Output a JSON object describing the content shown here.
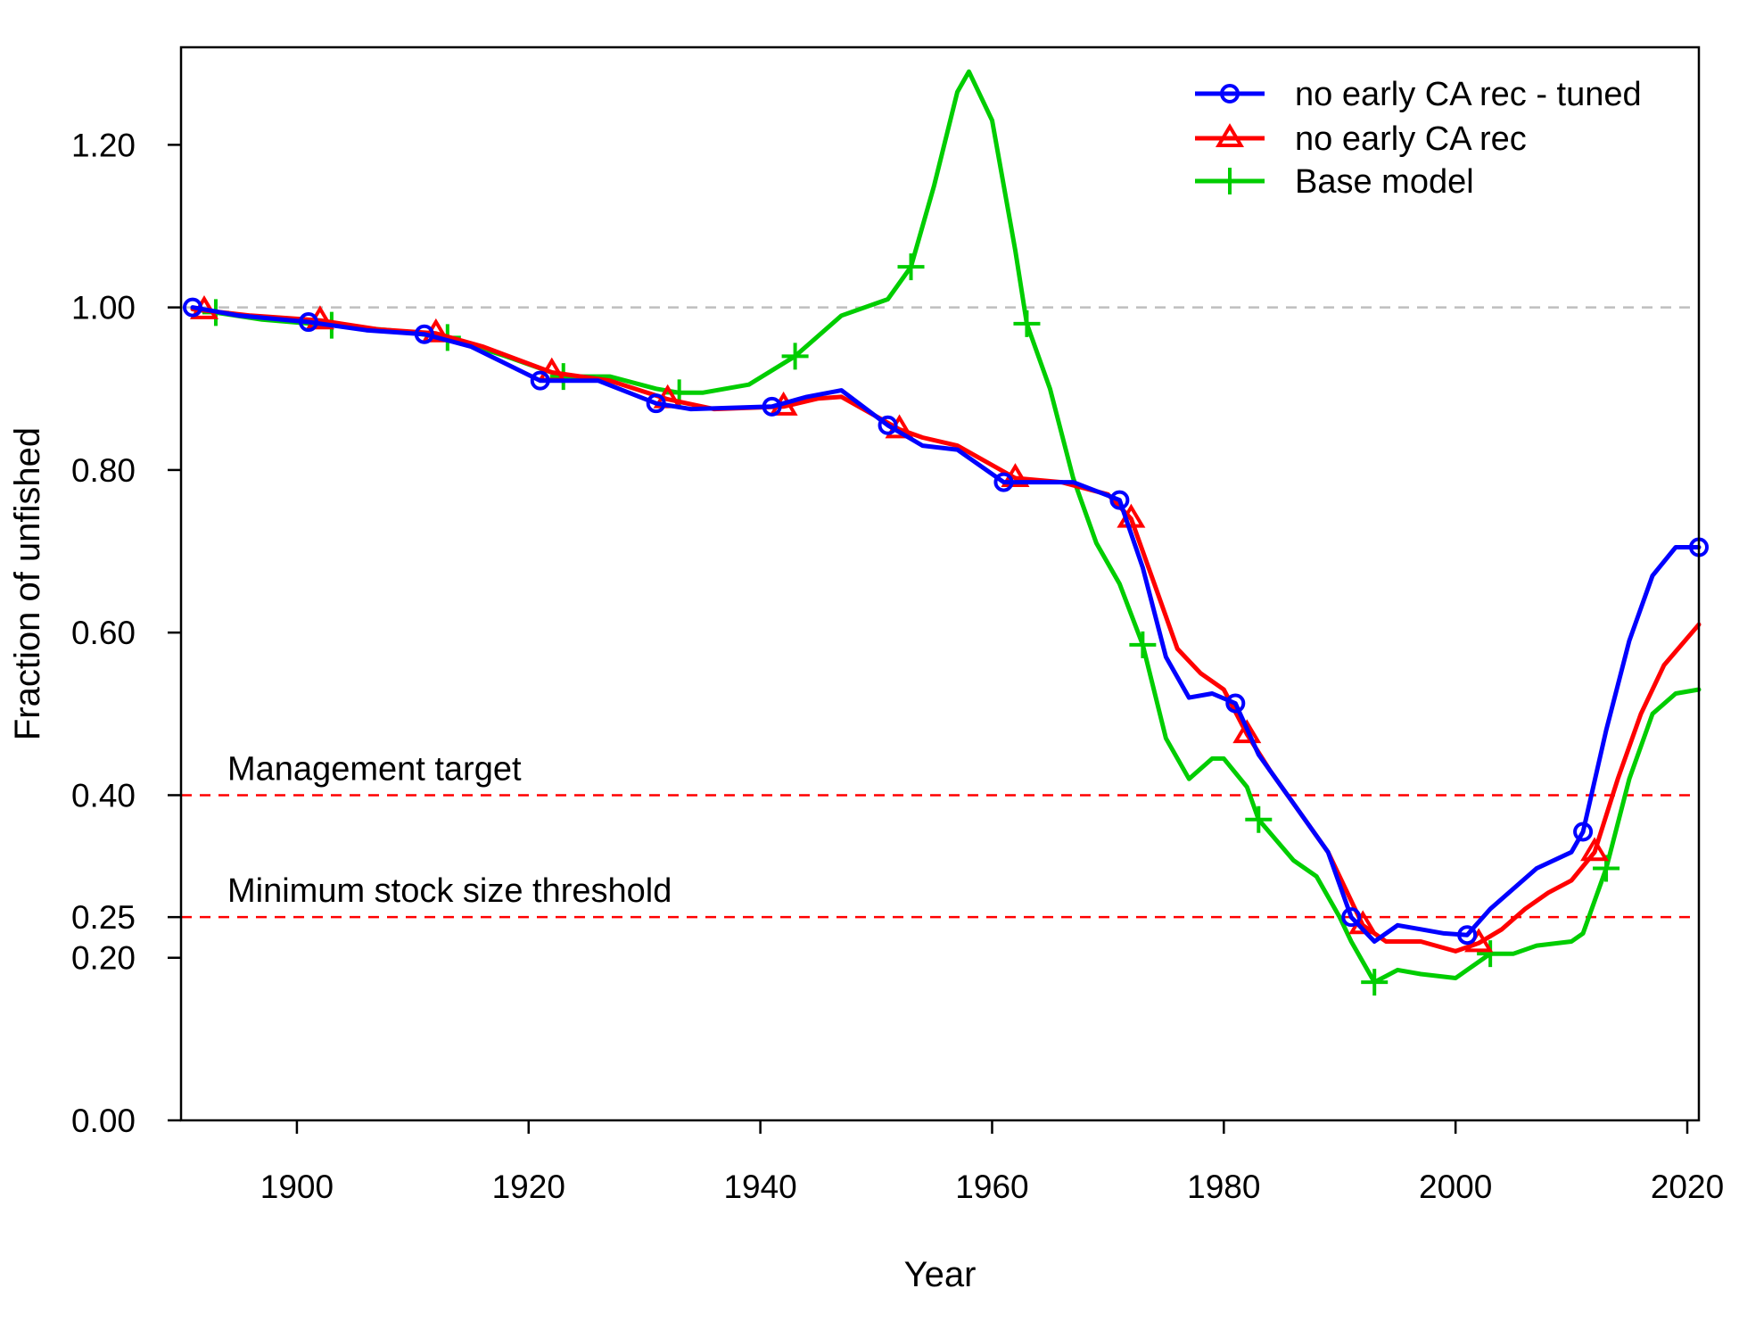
{
  "chart_data": {
    "type": "line",
    "xlabel": "Year",
    "ylabel": "Fraction of unfished",
    "xlim": [
      1890,
      2021
    ],
    "ylim": [
      0,
      1.32
    ],
    "x_ticks": [
      {
        "value": 1900,
        "label": "1900"
      },
      {
        "value": 1920,
        "label": "1920"
      },
      {
        "value": 1940,
        "label": "1940"
      },
      {
        "value": 1960,
        "label": "1960"
      },
      {
        "value": 1980,
        "label": "1980"
      },
      {
        "value": 2000,
        "label": "2000"
      },
      {
        "value": 2020,
        "label": "2020"
      }
    ],
    "y_ticks": [
      {
        "value": 0.0,
        "label": "0.00"
      },
      {
        "value": 0.2,
        "label": "0.20"
      },
      {
        "value": 0.25,
        "label": "0.25"
      },
      {
        "value": 0.4,
        "label": "0.40"
      },
      {
        "value": 0.6,
        "label": "0.60"
      },
      {
        "value": 0.8,
        "label": "0.80"
      },
      {
        "value": 1.0,
        "label": "1.00"
      },
      {
        "value": 1.2,
        "label": "1.20"
      }
    ],
    "reference_lines": [
      {
        "value": 1.0,
        "label": "",
        "color": "#bfbfbf"
      },
      {
        "value": 0.4,
        "label": "Management target",
        "color": "#ff0000"
      },
      {
        "value": 0.25,
        "label": "Minimum stock size threshold",
        "color": "#ff0000"
      }
    ],
    "legend_position": "top-right",
    "grid": false,
    "series": [
      {
        "name": "no early CA rec - tuned",
        "color": "#0000ff",
        "marker": "circle",
        "marker_years": [
          1891,
          1901,
          1911,
          1921,
          1931,
          1941,
          1951,
          1961,
          1971,
          1981,
          1991,
          2001,
          2011,
          2021
        ],
        "points": [
          [
            1891,
            1.0
          ],
          [
            1895,
            0.99
          ],
          [
            1901,
            0.982
          ],
          [
            1906,
            0.972
          ],
          [
            1911,
            0.967
          ],
          [
            1915,
            0.952
          ],
          [
            1921,
            0.91
          ],
          [
            1926,
            0.91
          ],
          [
            1931,
            0.882
          ],
          [
            1934,
            0.875
          ],
          [
            1941,
            0.878
          ],
          [
            1944,
            0.89
          ],
          [
            1947,
            0.898
          ],
          [
            1951,
            0.855
          ],
          [
            1954,
            0.83
          ],
          [
            1957,
            0.825
          ],
          [
            1961,
            0.785
          ],
          [
            1964,
            0.785
          ],
          [
            1967,
            0.785
          ],
          [
            1971,
            0.763
          ],
          [
            1973,
            0.68
          ],
          [
            1975,
            0.57
          ],
          [
            1977,
            0.52
          ],
          [
            1979,
            0.525
          ],
          [
            1981,
            0.513
          ],
          [
            1983,
            0.45
          ],
          [
            1986,
            0.39
          ],
          [
            1989,
            0.33
          ],
          [
            1991,
            0.25
          ],
          [
            1993,
            0.22
          ],
          [
            1995,
            0.24
          ],
          [
            1997,
            0.235
          ],
          [
            1999,
            0.23
          ],
          [
            2001,
            0.228
          ],
          [
            2003,
            0.26
          ],
          [
            2005,
            0.285
          ],
          [
            2007,
            0.31
          ],
          [
            2010,
            0.33
          ],
          [
            2011,
            0.355
          ],
          [
            2013,
            0.48
          ],
          [
            2015,
            0.59
          ],
          [
            2017,
            0.67
          ],
          [
            2019,
            0.705
          ],
          [
            2021,
            0.705
          ]
        ]
      },
      {
        "name": "no early CA rec",
        "color": "#ff0000",
        "marker": "triangle",
        "marker_years": [
          1892,
          1902,
          1912,
          1922,
          1932,
          1942,
          1952,
          1962,
          1972,
          1982,
          1992,
          2002,
          2012
        ],
        "points": [
          [
            1891,
            0.998
          ],
          [
            1896,
            0.99
          ],
          [
            1902,
            0.984
          ],
          [
            1907,
            0.973
          ],
          [
            1912,
            0.968
          ],
          [
            1916,
            0.952
          ],
          [
            1922,
            0.92
          ],
          [
            1927,
            0.91
          ],
          [
            1932,
            0.887
          ],
          [
            1936,
            0.875
          ],
          [
            1942,
            0.878
          ],
          [
            1945,
            0.888
          ],
          [
            1947,
            0.89
          ],
          [
            1952,
            0.85
          ],
          [
            1954,
            0.84
          ],
          [
            1957,
            0.83
          ],
          [
            1962,
            0.79
          ],
          [
            1966,
            0.785
          ],
          [
            1970,
            0.77
          ],
          [
            1972,
            0.74
          ],
          [
            1974,
            0.66
          ],
          [
            1976,
            0.58
          ],
          [
            1978,
            0.55
          ],
          [
            1980,
            0.53
          ],
          [
            1982,
            0.475
          ],
          [
            1984,
            0.43
          ],
          [
            1986,
            0.39
          ],
          [
            1989,
            0.33
          ],
          [
            1992,
            0.24
          ],
          [
            1994,
            0.22
          ],
          [
            1997,
            0.22
          ],
          [
            2000,
            0.208
          ],
          [
            2002,
            0.218
          ],
          [
            2004,
            0.235
          ],
          [
            2006,
            0.26
          ],
          [
            2008,
            0.28
          ],
          [
            2010,
            0.295
          ],
          [
            2012,
            0.33
          ],
          [
            2014,
            0.42
          ],
          [
            2016,
            0.5
          ],
          [
            2018,
            0.56
          ],
          [
            2021,
            0.61
          ]
        ]
      },
      {
        "name": "Base model",
        "color": "#00cd00",
        "marker": "plus",
        "marker_years": [
          1893,
          1903,
          1913,
          1923,
          1933,
          1943,
          1953,
          1963,
          1973,
          1983,
          1993,
          2003,
          2013
        ],
        "points": [
          [
            1891,
            0.998
          ],
          [
            1897,
            0.985
          ],
          [
            1903,
            0.978
          ],
          [
            1908,
            0.972
          ],
          [
            1913,
            0.963
          ],
          [
            1918,
            0.94
          ],
          [
            1923,
            0.915
          ],
          [
            1927,
            0.915
          ],
          [
            1931,
            0.9
          ],
          [
            1933,
            0.895
          ],
          [
            1935,
            0.895
          ],
          [
            1939,
            0.905
          ],
          [
            1943,
            0.94
          ],
          [
            1947,
            0.99
          ],
          [
            1951,
            1.01
          ],
          [
            1953,
            1.05
          ],
          [
            1955,
            1.15
          ],
          [
            1957,
            1.265
          ],
          [
            1958,
            1.29
          ],
          [
            1960,
            1.23
          ],
          [
            1962,
            1.07
          ],
          [
            1963,
            0.98
          ],
          [
            1965,
            0.9
          ],
          [
            1967,
            0.79
          ],
          [
            1969,
            0.71
          ],
          [
            1971,
            0.66
          ],
          [
            1973,
            0.585
          ],
          [
            1975,
            0.47
          ],
          [
            1977,
            0.42
          ],
          [
            1979,
            0.445
          ],
          [
            1980,
            0.445
          ],
          [
            1982,
            0.41
          ],
          [
            1983,
            0.37
          ],
          [
            1986,
            0.32
          ],
          [
            1988,
            0.3
          ],
          [
            1990,
            0.25
          ],
          [
            1991,
            0.22
          ],
          [
            1993,
            0.17
          ],
          [
            1995,
            0.185
          ],
          [
            1997,
            0.18
          ],
          [
            2000,
            0.175
          ],
          [
            2003,
            0.205
          ],
          [
            2005,
            0.205
          ],
          [
            2007,
            0.215
          ],
          [
            2010,
            0.22
          ],
          [
            2011,
            0.23
          ],
          [
            2013,
            0.31
          ],
          [
            2015,
            0.42
          ],
          [
            2017,
            0.5
          ],
          [
            2019,
            0.525
          ],
          [
            2021,
            0.53
          ]
        ]
      }
    ]
  }
}
